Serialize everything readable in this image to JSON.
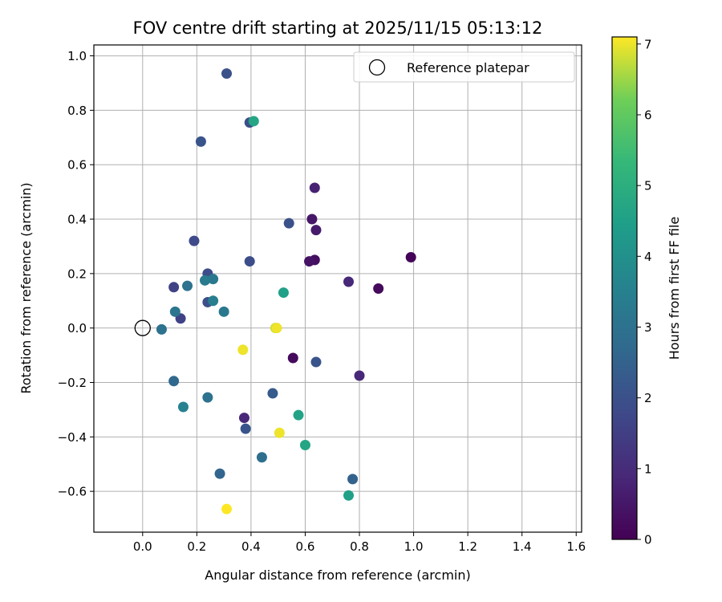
{
  "chart_data": {
    "type": "scatter",
    "title": "FOV centre drift starting at 2025/11/15 05:13:12",
    "xlabel": "Angular distance from reference (arcmin)",
    "ylabel": "Rotation from reference (arcmin)",
    "xlim": [
      -0.18,
      1.62
    ],
    "ylim": [
      -0.75,
      1.04
    ],
    "xticks": [
      0.0,
      0.2,
      0.4,
      0.6,
      0.8,
      1.0,
      1.2,
      1.4,
      1.6
    ],
    "xtick_labels": [
      "0.0",
      "0.2",
      "0.4",
      "0.6",
      "0.8",
      "1.0",
      "1.2",
      "1.4",
      "1.6"
    ],
    "yticks": [
      -0.6,
      -0.4,
      -0.2,
      0.0,
      0.2,
      0.4,
      0.6,
      0.8,
      1.0
    ],
    "ytick_labels": [
      "−0.6",
      "−0.4",
      "−0.2",
      "0.0",
      "0.2",
      "0.4",
      "0.6",
      "0.8",
      "1.0"
    ],
    "grid": true,
    "colormap": "viridis",
    "colorbar": {
      "label": "Hours from first FF file",
      "range": [
        0,
        7.1
      ],
      "ticks": [
        0,
        1,
        2,
        3,
        4,
        5,
        6,
        7
      ],
      "tick_labels": [
        "0",
        "1",
        "2",
        "3",
        "4",
        "5",
        "6",
        "7"
      ]
    },
    "legend": {
      "label": "Reference platepar",
      "placement": "top-right"
    },
    "reference": {
      "x": 0.0,
      "y": 0.0
    },
    "points": [
      {
        "x": 0.99,
        "y": 0.26,
        "h": 0.1
      },
      {
        "x": 0.87,
        "y": 0.145,
        "h": 0.2
      },
      {
        "x": 0.635,
        "y": 0.25,
        "h": 0.3
      },
      {
        "x": 0.615,
        "y": 0.245,
        "h": 0.4
      },
      {
        "x": 0.625,
        "y": 0.4,
        "h": 0.5
      },
      {
        "x": 0.64,
        "y": 0.36,
        "h": 0.6
      },
      {
        "x": 0.635,
        "y": 0.515,
        "h": 0.75
      },
      {
        "x": 0.76,
        "y": 0.17,
        "h": 0.9
      },
      {
        "x": 0.555,
        "y": -0.11,
        "h": 0.2
      },
      {
        "x": 0.8,
        "y": -0.175,
        "h": 0.9
      },
      {
        "x": 0.375,
        "y": -0.33,
        "h": 0.9
      },
      {
        "x": 0.14,
        "y": 0.035,
        "h": 1.6
      },
      {
        "x": 0.115,
        "y": 0.15,
        "h": 1.6
      },
      {
        "x": 0.19,
        "y": 0.32,
        "h": 1.8
      },
      {
        "x": 0.24,
        "y": 0.2,
        "h": 1.9
      },
      {
        "x": 0.24,
        "y": 0.095,
        "h": 2.0
      },
      {
        "x": 0.395,
        "y": 0.245,
        "h": 1.9
      },
      {
        "x": 0.54,
        "y": 0.385,
        "h": 2.0
      },
      {
        "x": 0.31,
        "y": 0.935,
        "h": 2.0
      },
      {
        "x": 0.215,
        "y": 0.685,
        "h": 2.1
      },
      {
        "x": 0.395,
        "y": 0.755,
        "h": 1.95
      },
      {
        "x": 0.64,
        "y": -0.125,
        "h": 2.1
      },
      {
        "x": 0.48,
        "y": -0.24,
        "h": 2.3
      },
      {
        "x": 0.38,
        "y": -0.37,
        "h": 2.1
      },
      {
        "x": 0.775,
        "y": -0.555,
        "h": 2.5
      },
      {
        "x": 0.285,
        "y": -0.535,
        "h": 2.6
      },
      {
        "x": 0.44,
        "y": -0.475,
        "h": 2.9
      },
      {
        "x": 0.115,
        "y": -0.195,
        "h": 2.7
      },
      {
        "x": 0.24,
        "y": -0.255,
        "h": 3.0
      },
      {
        "x": 0.165,
        "y": 0.155,
        "h": 3.0
      },
      {
        "x": 0.07,
        "y": -0.005,
        "h": 3.0
      },
      {
        "x": 0.12,
        "y": 0.06,
        "h": 3.1
      },
      {
        "x": 0.26,
        "y": 0.18,
        "h": 3.2
      },
      {
        "x": 0.23,
        "y": 0.175,
        "h": 3.3
      },
      {
        "x": 0.26,
        "y": 0.1,
        "h": 3.4
      },
      {
        "x": 0.3,
        "y": 0.06,
        "h": 3.2
      },
      {
        "x": 0.15,
        "y": -0.29,
        "h": 3.5
      },
      {
        "x": 0.41,
        "y": 0.76,
        "h": 4.7
      },
      {
        "x": 0.52,
        "y": 0.13,
        "h": 4.5
      },
      {
        "x": 0.575,
        "y": -0.32,
        "h": 4.6
      },
      {
        "x": 0.6,
        "y": -0.43,
        "h": 4.7
      },
      {
        "x": 0.76,
        "y": -0.615,
        "h": 4.5
      },
      {
        "x": 0.49,
        "y": 0.0,
        "h": 6.8
      },
      {
        "x": 0.495,
        "y": 0.0,
        "h": 7.0
      },
      {
        "x": 0.37,
        "y": -0.08,
        "h": 7.0
      },
      {
        "x": 0.505,
        "y": -0.385,
        "h": 7.0
      },
      {
        "x": 0.31,
        "y": -0.665,
        "h": 7.1
      }
    ]
  }
}
